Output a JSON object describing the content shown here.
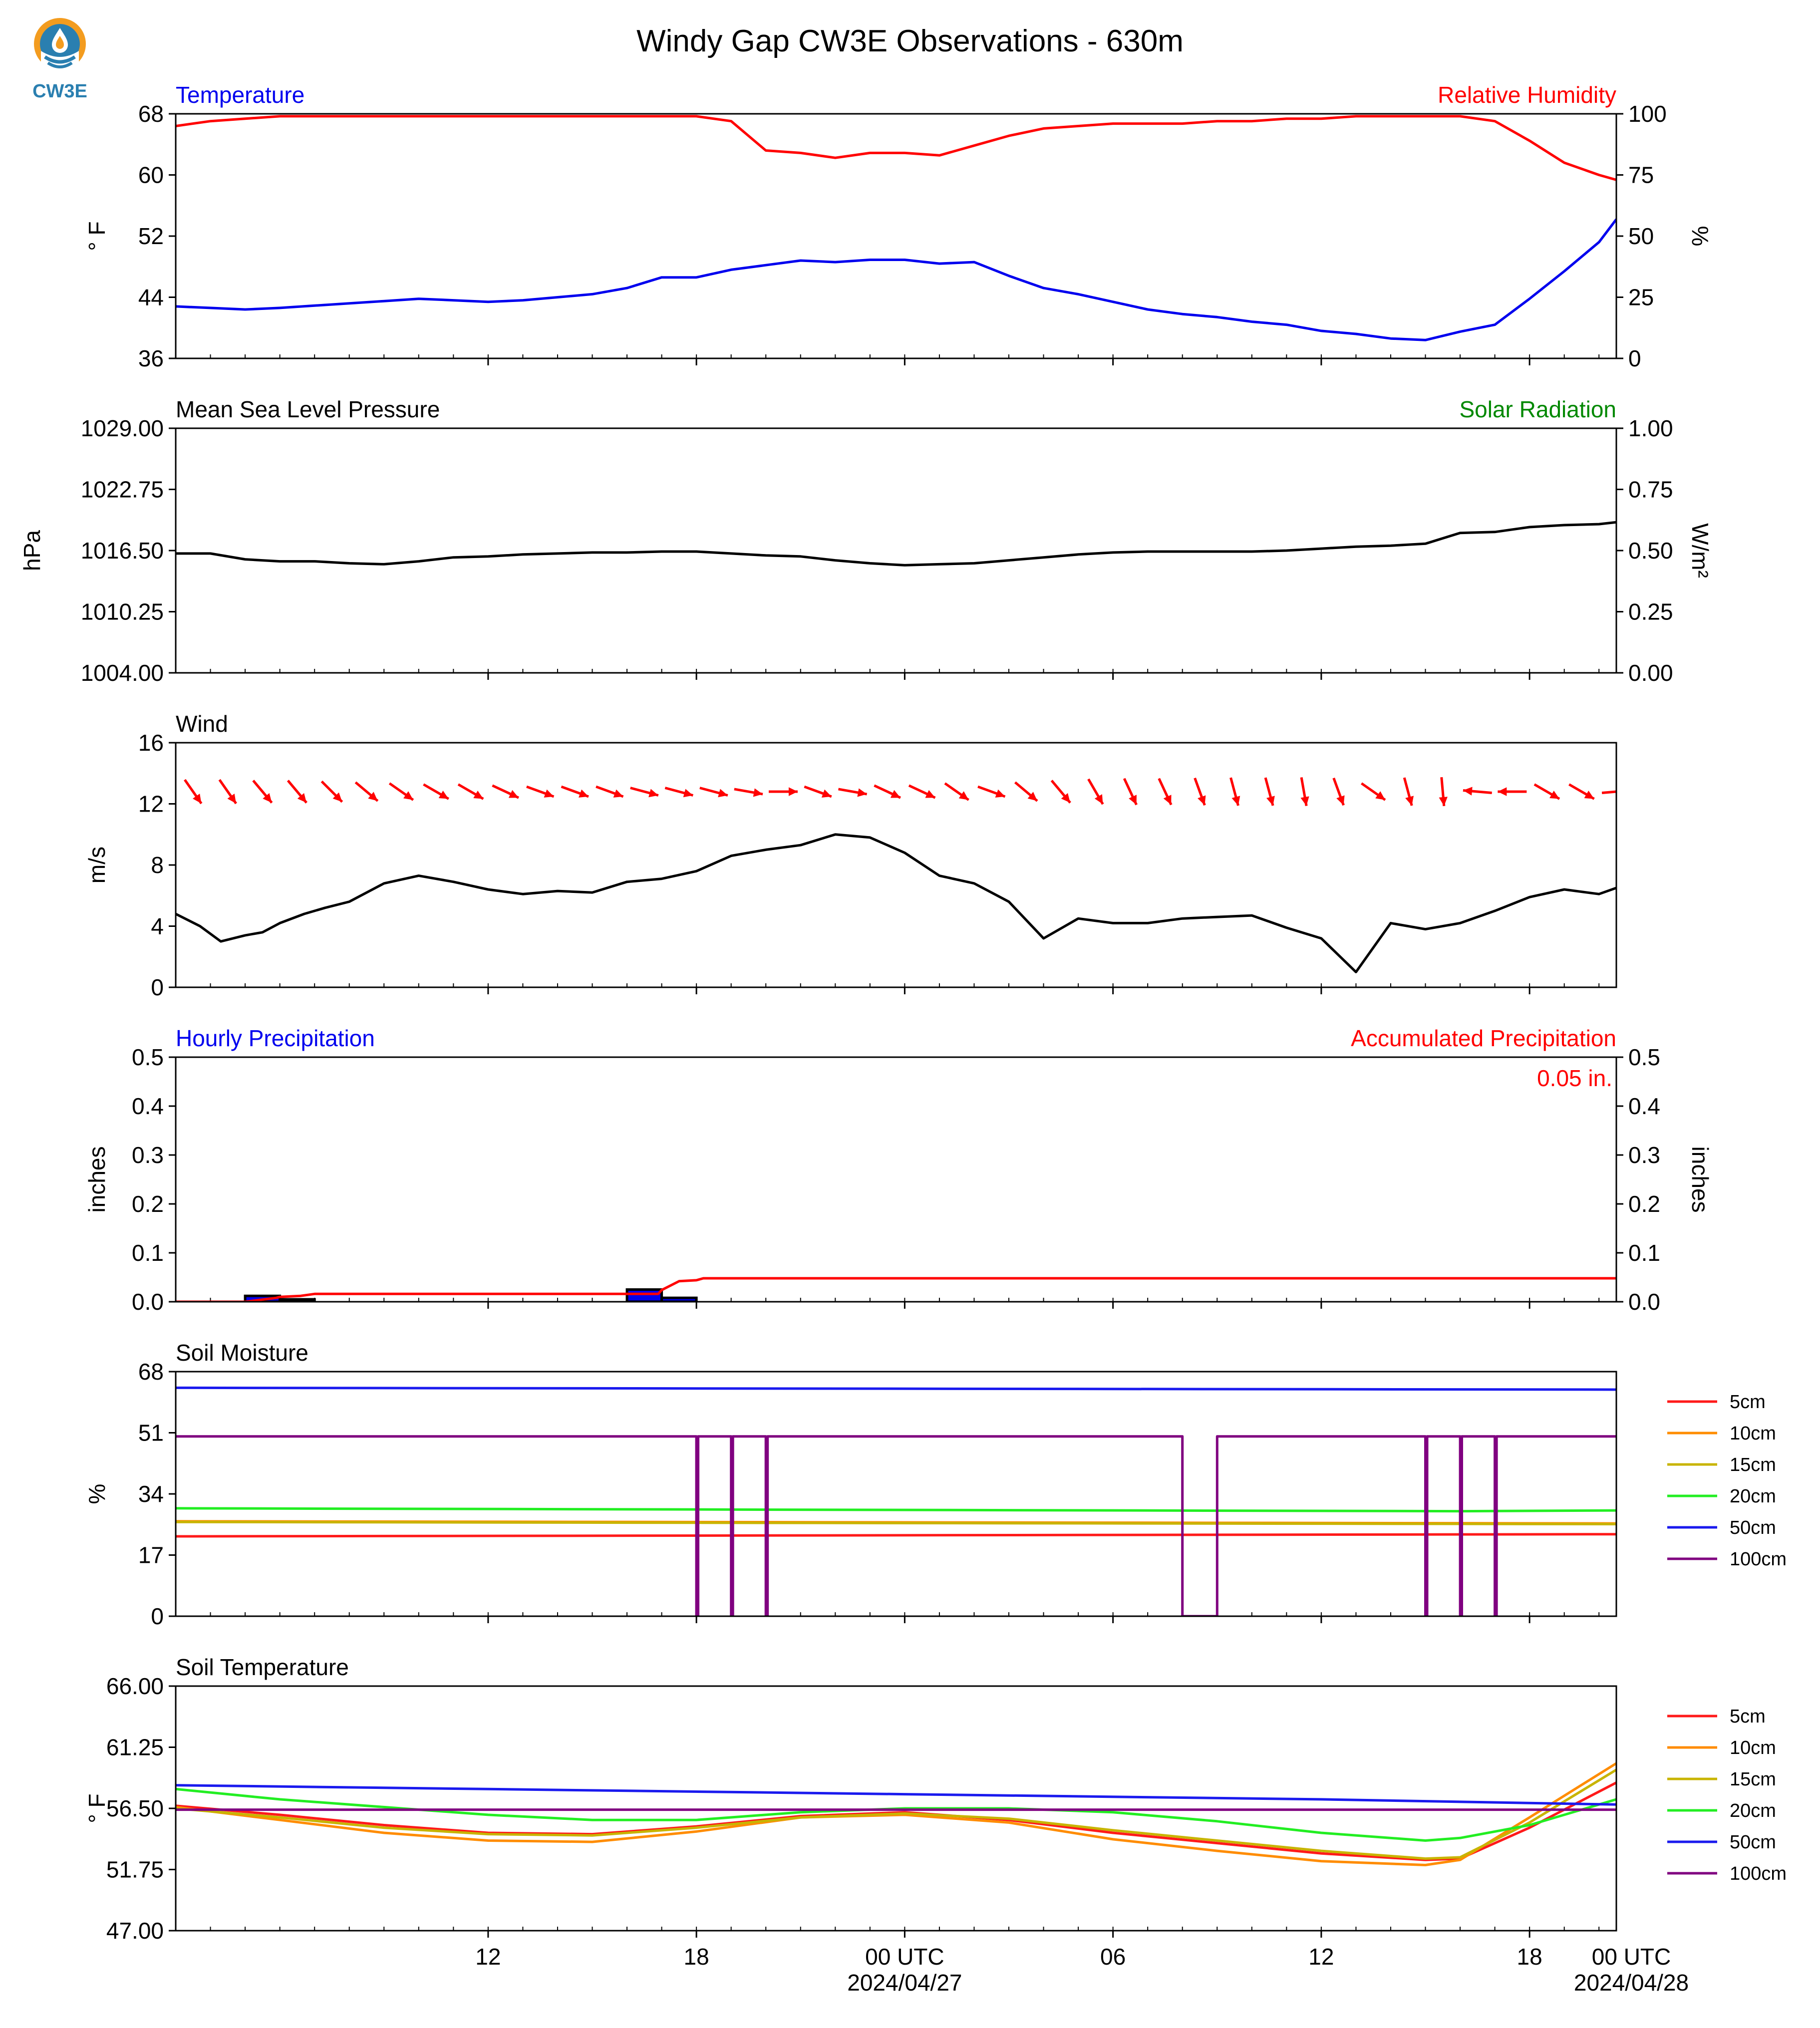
{
  "title": "Windy Gap CW3E Observations - 630m",
  "logo": {
    "text": "CW3E"
  },
  "colors": {
    "red": "#ff0000",
    "blue": "#0000ee",
    "green": "#008800",
    "black": "#000000",
    "logo_blue": "#2a7fb0",
    "logo_orange": "#f39c1f"
  },
  "x_axis": {
    "start_hour": 3,
    "end_hour": 44.5,
    "tick_hours": [
      12,
      18,
      24,
      30,
      36,
      42
    ],
    "tick_labels": [
      "12",
      "18",
      "00 UTC",
      "06",
      "12",
      "18",
      "00 UTC"
    ],
    "tick_label_hours": [
      12,
      18,
      24,
      30,
      36,
      42,
      48
    ],
    "date_labels": [
      {
        "hour": 24,
        "text": "2024/04/27"
      },
      {
        "hour": 48,
        "text": "2024/04/28"
      }
    ]
  },
  "chart_data": [
    {
      "id": "temp_rh",
      "type": "line",
      "left_title": "Temperature",
      "right_title": "Relative Humidity",
      "ylabel_left": "° F",
      "ylabel_right": "%",
      "ylim": [
        36,
        68
      ],
      "yticks": [
        36,
        44,
        52,
        60,
        68
      ],
      "ylim_right": [
        0,
        100
      ],
      "yticks_right": [
        0,
        25,
        50,
        75,
        100
      ],
      "series": [
        {
          "name": "Temperature",
          "axis": "left",
          "color": "#0000ee",
          "x": [
            3,
            4,
            5,
            6,
            7,
            8,
            9,
            10,
            11,
            12,
            13,
            14,
            15,
            16,
            17,
            18,
            19,
            20,
            21,
            22,
            23,
            24,
            25,
            26,
            27,
            28,
            29,
            30,
            31,
            32,
            33,
            34,
            35,
            36,
            37,
            38,
            39,
            40,
            41,
            42,
            43,
            44,
            44.5
          ],
          "y": [
            42.8,
            42.6,
            42.4,
            42.6,
            42.9,
            43.2,
            43.5,
            43.8,
            43.6,
            43.4,
            43.6,
            44.0,
            44.4,
            45.2,
            46.6,
            46.6,
            47.6,
            48.2,
            48.8,
            48.6,
            48.9,
            48.9,
            48.4,
            48.6,
            46.8,
            45.2,
            44.4,
            43.4,
            42.4,
            41.8,
            41.4,
            40.8,
            40.4,
            39.6,
            39.2,
            38.6,
            38.4,
            39.5,
            40.4,
            43.8,
            47.4,
            51.2,
            54.2
          ]
        },
        {
          "name": "Relative Humidity",
          "axis": "right",
          "color": "#ff0000",
          "x": [
            3,
            4,
            5,
            6,
            7,
            8,
            9,
            10,
            11,
            12,
            13,
            14,
            15,
            16,
            17,
            18,
            19,
            20,
            21,
            22,
            23,
            24,
            25,
            26,
            27,
            28,
            29,
            30,
            31,
            32,
            33,
            34,
            35,
            36,
            37,
            38,
            39,
            40,
            41,
            42,
            43,
            44,
            44.5
          ],
          "y": [
            95,
            97,
            98,
            99,
            99,
            99,
            99,
            99,
            99,
            99,
            99,
            99,
            99,
            99,
            99,
            99,
            97,
            85,
            84,
            82,
            84,
            84,
            83,
            87,
            91,
            94,
            95,
            96,
            96,
            96,
            97,
            97,
            98,
            98,
            99,
            99,
            99,
            99,
            97,
            89,
            80,
            75,
            73
          ]
        }
      ]
    },
    {
      "id": "pressure",
      "type": "line",
      "left_title": "Mean Sea Level Pressure",
      "right_title": "Solar Radiation",
      "ylabel_left": "hPa",
      "ylabel_right": "W/m²",
      "ylim": [
        1004,
        1029
      ],
      "yticks": [
        1004,
        1010.25,
        1016.5,
        1022.75,
        1029
      ],
      "ytick_labels": [
        "1004.00",
        "1010.25",
        "1016.50",
        "1022.75",
        "1029.00"
      ],
      "ylim_right": [
        0,
        1
      ],
      "yticks_right": [
        0,
        0.25,
        0.5,
        0.75,
        1.0
      ],
      "ytick_labels_right": [
        "0.00",
        "0.25",
        "0.50",
        "0.75",
        "1.00"
      ],
      "series": [
        {
          "name": "Mean Sea Level Pressure",
          "axis": "left",
          "color": "#000000",
          "x": [
            3,
            4,
            5,
            6,
            7,
            8,
            9,
            10,
            11,
            12,
            13,
            14,
            15,
            16,
            17,
            18,
            19,
            20,
            21,
            22,
            23,
            24,
            25,
            26,
            27,
            28,
            29,
            30,
            31,
            32,
            33,
            34,
            35,
            36,
            37,
            38,
            39,
            40,
            41,
            42,
            43,
            44,
            44.5
          ],
          "y": [
            1016.2,
            1016.2,
            1015.6,
            1015.4,
            1015.4,
            1015.2,
            1015.1,
            1015.4,
            1015.8,
            1015.9,
            1016.1,
            1016.2,
            1016.3,
            1016.3,
            1016.4,
            1016.4,
            1016.2,
            1016.0,
            1015.9,
            1015.5,
            1015.2,
            1015.0,
            1015.1,
            1015.2,
            1015.5,
            1015.8,
            1016.1,
            1016.3,
            1016.4,
            1016.4,
            1016.4,
            1016.4,
            1016.5,
            1016.7,
            1016.9,
            1017.0,
            1017.2,
            1018.3,
            1018.4,
            1018.9,
            1019.1,
            1019.2,
            1019.4
          ]
        }
      ]
    },
    {
      "id": "wind",
      "type": "line",
      "left_title": "Wind",
      "ylabel_left": "m/s",
      "ylim": [
        0,
        16
      ],
      "yticks": [
        0,
        4,
        8,
        12,
        16
      ],
      "series": [
        {
          "name": "Wind",
          "axis": "left",
          "color": "#000000",
          "x": [
            3,
            3.7,
            4.3,
            5,
            5.5,
            6,
            6.7,
            7.3,
            8,
            9,
            10,
            11,
            12,
            13,
            14,
            15,
            16,
            17,
            18,
            19,
            20,
            21,
            22,
            23,
            24,
            25,
            26,
            27,
            28,
            29,
            30,
            31,
            32,
            33,
            34,
            35,
            36,
            37,
            38,
            39,
            40,
            41,
            42,
            43,
            44,
            44.5
          ],
          "y": [
            4.8,
            4.0,
            3.0,
            3.4,
            3.6,
            4.2,
            4.8,
            5.2,
            5.6,
            6.8,
            7.3,
            6.9,
            6.4,
            6.1,
            6.3,
            6.2,
            6.9,
            7.1,
            7.6,
            8.6,
            9.0,
            9.3,
            10.0,
            9.8,
            8.8,
            7.3,
            6.8,
            5.6,
            3.2,
            4.5,
            4.2,
            4.2,
            4.5,
            4.6,
            4.7,
            3.9,
            3.2,
            1.0,
            4.2,
            3.8,
            4.2,
            5.0,
            5.9,
            6.4,
            6.1,
            6.5
          ]
        }
      ],
      "arrows": {
        "color": "#ff0000",
        "y": 12.8,
        "hours": [
          3.5,
          4.5,
          5.5,
          6.5,
          7.5,
          8.5,
          9.5,
          10.5,
          11.5,
          12.5,
          13.5,
          14.5,
          15.5,
          16.5,
          17.5,
          18.5,
          19.5,
          20.5,
          21.5,
          22.5,
          23.5,
          24.5,
          25.5,
          26.5,
          27.5,
          28.5,
          29.5,
          30.5,
          31.5,
          32.5,
          33.5,
          34.5,
          35.5,
          36.5,
          37.5,
          38.5,
          39.5,
          40.5,
          41.5,
          42.5,
          43.5,
          44.5
        ],
        "directions_deg": [
          325,
          325,
          320,
          320,
          315,
          310,
          305,
          300,
          300,
          295,
          290,
          290,
          290,
          285,
          285,
          285,
          280,
          270,
          290,
          280,
          295,
          295,
          305,
          290,
          310,
          320,
          330,
          335,
          335,
          340,
          345,
          345,
          350,
          340,
          305,
          345,
          355,
          95,
          90,
          300,
          300,
          265
        ]
      }
    },
    {
      "id": "precip",
      "type": "bar",
      "left_title": "Hourly Precipitation",
      "right_title": "Accumulated Precipitation",
      "accum_label": "0.05 in.",
      "ylabel_left": "inches",
      "ylabel_right": "inches",
      "ylim": [
        0,
        0.5
      ],
      "yticks": [
        0,
        0.1,
        0.2,
        0.3,
        0.4,
        0.5
      ],
      "ytick_labels": [
        "0.0",
        "0.1",
        "0.2",
        "0.3",
        "0.4",
        "0.5"
      ],
      "ylim_right": [
        0,
        0.5
      ],
      "ytick_labels_right": [
        "0.0",
        "0.1",
        "0.2",
        "0.3",
        "0.4",
        "0.5"
      ],
      "bars": [
        {
          "start": 5,
          "end": 6,
          "value": 0.012
        },
        {
          "start": 6,
          "end": 7,
          "value": 0.005
        },
        {
          "start": 16,
          "end": 17,
          "value": 0.025
        },
        {
          "start": 17,
          "end": 18,
          "value": 0.008
        }
      ],
      "series": [
        {
          "name": "Accumulated Precipitation",
          "axis": "right",
          "color": "#ff0000",
          "x": [
            3,
            5,
            5.9,
            6,
            6.6,
            7,
            16.9,
            17,
            17.5,
            18,
            18.2,
            44.5
          ],
          "y": [
            0,
            0,
            0.008,
            0.01,
            0.012,
            0.016,
            0.016,
            0.024,
            0.042,
            0.044,
            0.048,
            0.048
          ]
        }
      ]
    },
    {
      "id": "soil_moisture",
      "type": "line",
      "left_title": "Soil Moisture",
      "ylabel_left": "%",
      "ylim": [
        0,
        68
      ],
      "yticks": [
        0,
        17,
        34,
        51,
        68
      ],
      "legend": [
        "5cm",
        "10cm",
        "15cm",
        "20cm",
        "50cm",
        "100cm"
      ],
      "series": [
        {
          "name": "5cm",
          "color": "#ff1a1a",
          "x": [
            3,
            44.5
          ],
          "y": [
            22.2,
            22.8
          ]
        },
        {
          "name": "10cm",
          "color": "#ff8c00",
          "x": [
            3,
            44.5
          ],
          "y": [
            26.4,
            25.8
          ]
        },
        {
          "name": "15cm",
          "color": "#c8b400",
          "x": [
            3,
            44.5
          ],
          "y": [
            26.2,
            25.6
          ]
        },
        {
          "name": "20cm",
          "color": "#22ee22",
          "x": [
            3,
            40,
            44.5
          ],
          "y": [
            30.0,
            29.2,
            29.4
          ]
        },
        {
          "name": "50cm",
          "color": "#1a1aee",
          "x": [
            3,
            44.5
          ],
          "y": [
            63.5,
            63.0
          ]
        },
        {
          "name": "100cm",
          "color": "#800080",
          "x": [
            3,
            18,
            18,
            18.05,
            18.05,
            19,
            19,
            19.05,
            19.05,
            20,
            20,
            20.05,
            20.05,
            32,
            32,
            33,
            33,
            39,
            39,
            39.05,
            39.05,
            40,
            40,
            40.05,
            40.05,
            41,
            41,
            41.05,
            41.05,
            44.5
          ],
          "y": [
            50,
            50,
            0,
            0,
            50,
            50,
            0,
            0,
            50,
            50,
            0,
            0,
            50,
            50,
            0,
            0,
            50,
            50,
            0,
            0,
            50,
            50,
            0,
            0,
            50,
            50,
            0,
            0,
            50,
            50
          ]
        }
      ]
    },
    {
      "id": "soil_temperature",
      "type": "line",
      "left_title": "Soil Temperature",
      "ylabel_left": "° F",
      "ylim": [
        47,
        66
      ],
      "yticks": [
        47,
        51.75,
        56.5,
        61.25,
        66
      ],
      "ytick_labels": [
        "47.00",
        "51.75",
        "56.50",
        "61.25",
        "66.00"
      ],
      "legend": [
        "5cm",
        "10cm",
        "15cm",
        "20cm",
        "50cm",
        "100cm"
      ],
      "series": [
        {
          "name": "5cm",
          "color": "#ff1a1a",
          "x": [
            3,
            6,
            9,
            12,
            15,
            18,
            21,
            24,
            27,
            30,
            33,
            36,
            39,
            40,
            42,
            44.5
          ],
          "y": [
            56.7,
            56.0,
            55.2,
            54.6,
            54.5,
            55.1,
            55.9,
            56.2,
            55.6,
            54.6,
            53.8,
            53.0,
            52.5,
            52.6,
            55.0,
            58.5
          ]
        },
        {
          "name": "10cm",
          "color": "#ff8c00",
          "x": [
            3,
            6,
            9,
            12,
            15,
            18,
            21,
            24,
            27,
            30,
            33,
            36,
            39,
            40,
            42,
            44.5
          ],
          "y": [
            56.6,
            55.6,
            54.6,
            54.0,
            53.9,
            54.7,
            55.8,
            56.0,
            55.4,
            54.1,
            53.2,
            52.4,
            52.1,
            52.5,
            55.8,
            60.0
          ]
        },
        {
          "name": "15cm",
          "color": "#c8b400",
          "x": [
            3,
            6,
            9,
            12,
            15,
            18,
            21,
            24,
            27,
            30,
            33,
            36,
            39,
            40,
            42,
            44.5
          ],
          "y": [
            56.5,
            55.8,
            55.0,
            54.5,
            54.4,
            55.0,
            55.8,
            56.1,
            55.7,
            54.8,
            54.0,
            53.2,
            52.6,
            52.7,
            55.4,
            59.5
          ]
        },
        {
          "name": "20cm",
          "color": "#22ee22",
          "x": [
            3,
            6,
            9,
            12,
            15,
            18,
            21,
            24,
            27,
            30,
            33,
            36,
            39,
            40,
            42,
            44.5
          ],
          "y": [
            58.0,
            57.2,
            56.6,
            56.0,
            55.6,
            55.6,
            56.2,
            56.5,
            56.5,
            56.2,
            55.5,
            54.6,
            54.0,
            54.2,
            55.2,
            57.2
          ]
        },
        {
          "name": "50cm",
          "color": "#1a1aee",
          "x": [
            3,
            12,
            24,
            36,
            44.5
          ],
          "y": [
            58.3,
            58.0,
            57.6,
            57.2,
            56.8
          ]
        },
        {
          "name": "100cm",
          "color": "#800080",
          "x": [
            3,
            44.5
          ],
          "y": [
            56.4,
            56.4
          ]
        }
      ]
    }
  ]
}
